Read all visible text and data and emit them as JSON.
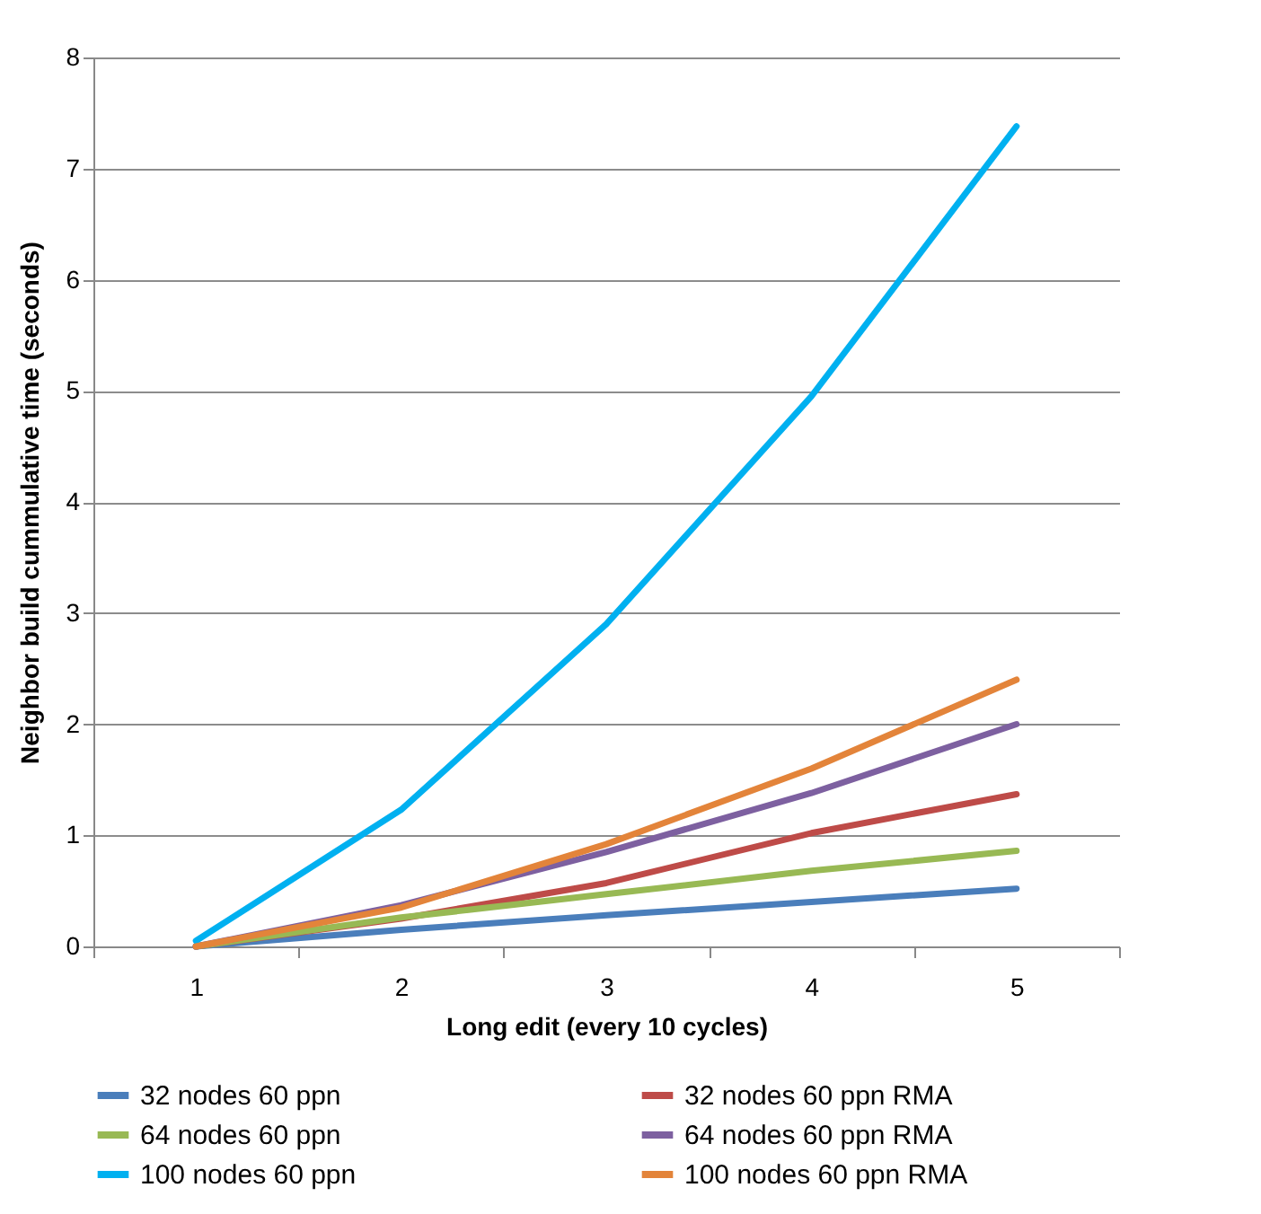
{
  "chart_data": {
    "type": "line",
    "xlabel": "Long edit (every 10 cycles)",
    "ylabel": "Neighbor build cummulative time (seconds)",
    "categories": [
      "1",
      "2",
      "3",
      "4",
      "5"
    ],
    "ylim": [
      0,
      8
    ],
    "yticks": [
      0,
      1,
      2,
      3,
      4,
      5,
      6,
      7,
      8
    ],
    "grid": "y",
    "legend": "bottom",
    "marker": "none",
    "series": [
      {
        "name": "32 nodes 60 ppn",
        "color": "#4a7ebb",
        "values": [
          0,
          0.15,
          0.28,
          0.4,
          0.52
        ]
      },
      {
        "name": "32 nodes 60 ppn RMA",
        "color": "#be4b48",
        "values": [
          0,
          0.25,
          0.57,
          1.02,
          1.37
        ]
      },
      {
        "name": "64 nodes 60 ppn",
        "color": "#98b954",
        "values": [
          0,
          0.26,
          0.47,
          0.68,
          0.86
        ]
      },
      {
        "name": "64 nodes 60 ppn RMA",
        "color": "#7d60a0",
        "values": [
          0,
          0.37,
          0.85,
          1.38,
          2.0
        ]
      },
      {
        "name": "100 nodes 60 ppn",
        "color": "#00b0f0",
        "values": [
          0.05,
          1.23,
          2.9,
          4.95,
          7.38
        ]
      },
      {
        "name": "100 nodes 60 ppn RMA",
        "color": "#e3843a",
        "values": [
          0,
          0.35,
          0.92,
          1.6,
          2.4
        ]
      }
    ]
  }
}
